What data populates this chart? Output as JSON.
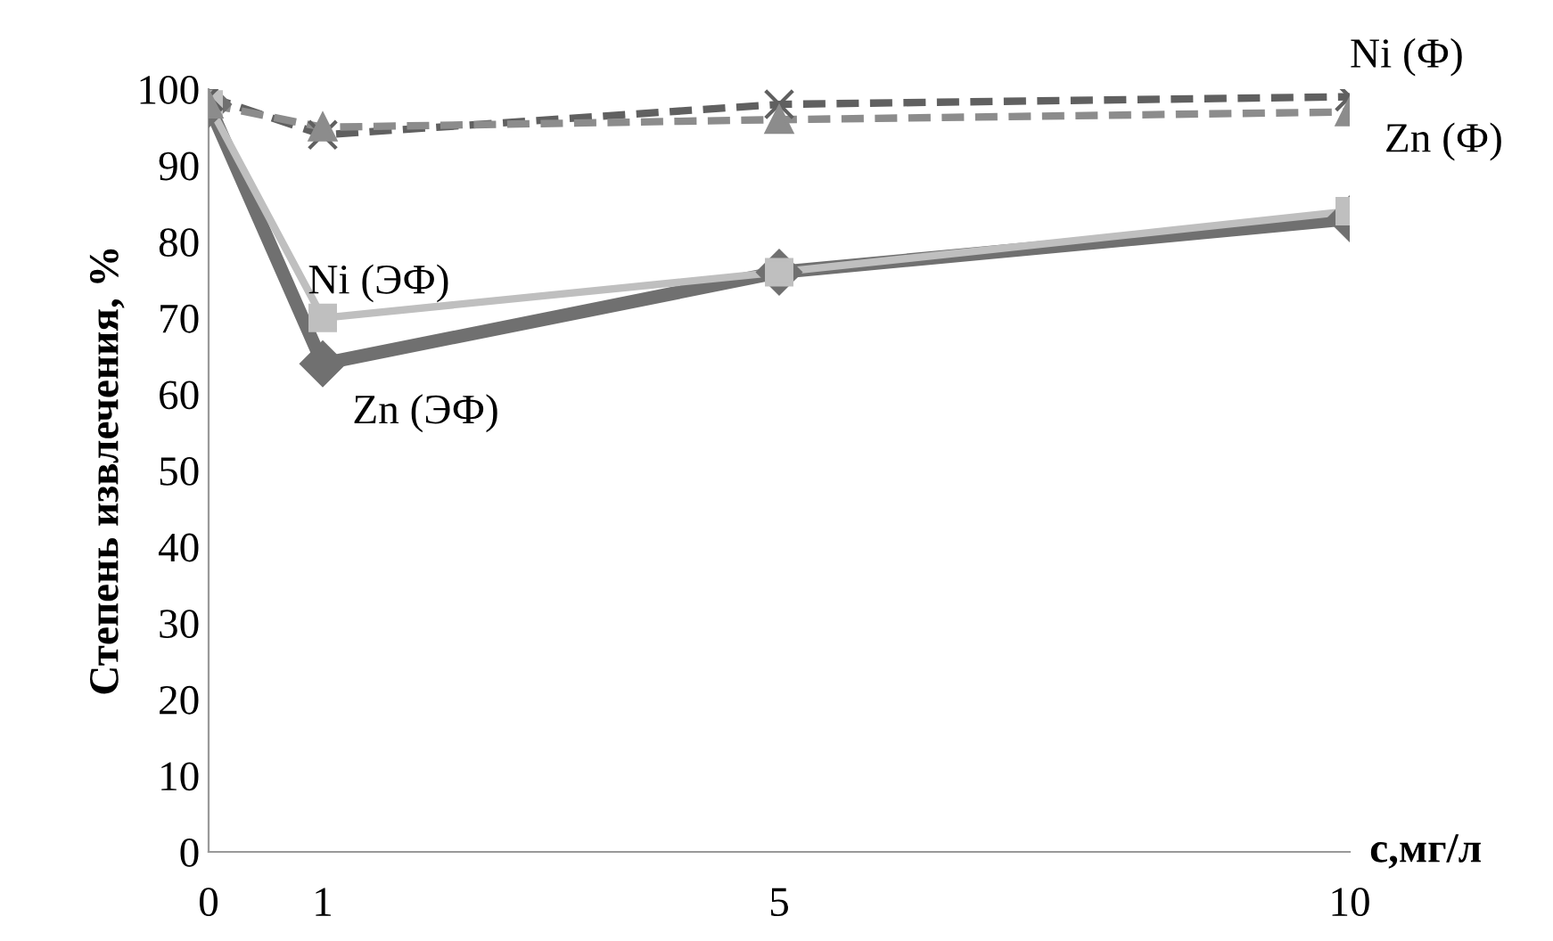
{
  "chart_data": {
    "type": "line",
    "xlabel": "с,мг/л",
    "ylabel": "Степень извлечения, %",
    "x": [
      0,
      1,
      5,
      10
    ],
    "xlim": [
      0,
      10
    ],
    "xticks": [
      0,
      1,
      5,
      10
    ],
    "ylim": [
      0,
      100
    ],
    "yticks": [
      0,
      10,
      20,
      30,
      40,
      50,
      60,
      70,
      80,
      90,
      100
    ],
    "grid": false,
    "legend": false,
    "series": [
      {
        "name": "Zn (ЭФ)",
        "color": "#707070",
        "marker": "diamond",
        "line_style": "solid",
        "values": [
          98,
          64,
          76,
          83
        ]
      },
      {
        "name": "Ni (ЭФ)",
        "color": "#bfbfbf",
        "marker": "square",
        "line_style": "solid",
        "values": [
          98,
          70,
          76,
          84
        ]
      },
      {
        "name": "Ni (Ф)",
        "color": "#606060",
        "marker": "cross",
        "line_style": "dashed",
        "values": [
          99,
          94,
          98,
          99
        ]
      },
      {
        "name": "Zn (Ф)",
        "color": "#8c8c8c",
        "marker": "triangle",
        "line_style": "dashed",
        "values": [
          98,
          95,
          96,
          97
        ]
      }
    ]
  }
}
